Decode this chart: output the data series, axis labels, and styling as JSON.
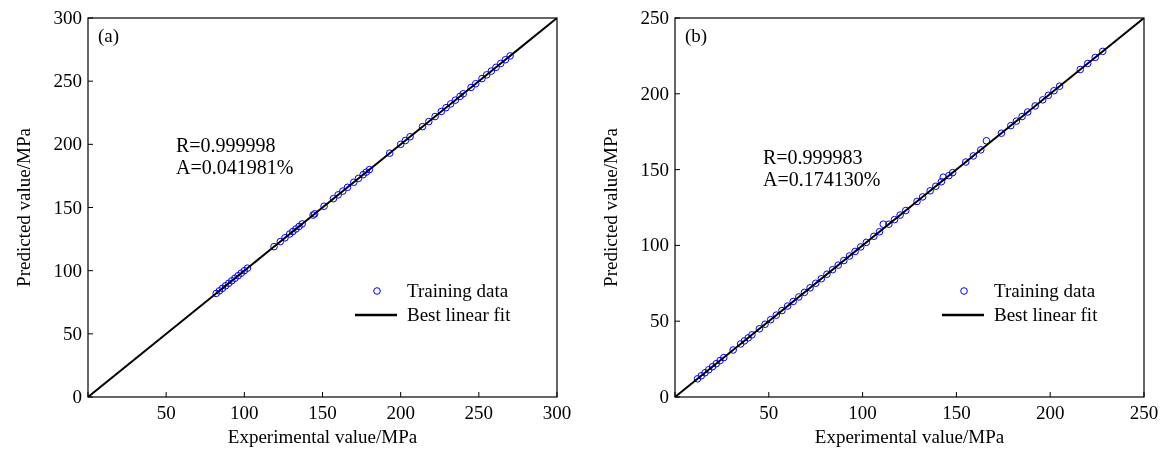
{
  "chart_data": [
    {
      "type": "scatter",
      "xlabel": "Experimental value/MPa",
      "ylabel": "Predicted value/MPa",
      "xlim": [
        0,
        300
      ],
      "ylim": [
        0,
        300
      ],
      "xticks": [
        {
          "value": 0,
          "label": null
        },
        50,
        100,
        150,
        200,
        250,
        300
      ],
      "yticks": [
        0,
        50,
        100,
        150,
        200,
        250,
        300
      ],
      "annotations": [
        "(a)",
        "R=0.999998",
        "A=0.041981%"
      ],
      "legend": "bottom right",
      "grid": false,
      "series": [
        {
          "name": "Training data",
          "type": "scatter",
          "color": "#0000ff",
          "marker": "circle",
          "x": [
            82,
            84,
            86,
            88,
            90,
            92,
            94,
            96,
            98,
            100,
            102,
            119,
            123,
            126,
            129,
            131,
            133,
            135,
            137,
            144,
            145,
            151,
            157,
            160,
            163,
            166,
            170,
            173,
            176,
            178,
            180,
            193,
            200,
            203,
            206,
            214,
            218,
            222,
            226,
            229,
            232,
            235,
            238,
            240,
            245,
            248,
            252,
            255,
            258,
            261,
            264,
            267,
            270
          ],
          "values": [
            82,
            84,
            86,
            88,
            90,
            92,
            94,
            96,
            98,
            100,
            102,
            119,
            123,
            126,
            129,
            131,
            133,
            135,
            137,
            144,
            145,
            151,
            157,
            160,
            163,
            166,
            170,
            173,
            176,
            178,
            180,
            193,
            200,
            203,
            206,
            214,
            218,
            222,
            226,
            229,
            232,
            235,
            238,
            240,
            245,
            248,
            252,
            255,
            258,
            261,
            264,
            267,
            270
          ]
        },
        {
          "name": "Best linear fit",
          "type": "line",
          "color": "#000000",
          "line_style": "solid",
          "x": [
            0,
            300
          ],
          "values": [
            0,
            300
          ]
        }
      ]
    },
    {
      "type": "scatter",
      "xlabel": "Experimental value/MPa",
      "ylabel": "Predicted value/MPa",
      "xlim": [
        0,
        250
      ],
      "ylim": [
        0,
        250
      ],
      "xticks": [
        {
          "value": 0,
          "label": null
        },
        50,
        100,
        150,
        200,
        250
      ],
      "yticks": [
        0,
        50,
        100,
        150,
        200,
        250
      ],
      "annotations": [
        "(b)",
        "R=0.999983",
        "A=0.174130%"
      ],
      "legend": "bottom right",
      "grid": false,
      "series": [
        {
          "name": "Training data",
          "type": "scatter",
          "color": "#0000ff",
          "marker": "circle",
          "x": [
            12,
            14,
            16,
            18,
            20,
            22,
            24,
            26,
            31,
            35,
            37,
            39,
            41,
            45,
            48,
            51,
            54,
            57,
            60,
            63,
            66,
            69,
            72,
            75,
            78,
            81,
            84,
            87,
            90,
            93,
            96,
            99,
            102,
            106,
            109,
            111,
            114,
            117,
            120,
            123,
            129,
            132,
            136,
            139,
            142,
            143,
            146,
            148,
            155,
            159,
            163,
            166,
            174,
            179,
            182,
            185,
            188,
            192,
            196,
            199,
            202,
            205,
            216,
            220,
            224,
            228
          ],
          "values": [
            12,
            14,
            16,
            18,
            20,
            22,
            24,
            26,
            31,
            35,
            37,
            39,
            41,
            45,
            48,
            51,
            54,
            57,
            60,
            63,
            66,
            69,
            72,
            75,
            78,
            81,
            84,
            87,
            90,
            93,
            96,
            99,
            102,
            106,
            109,
            114,
            114,
            117,
            120,
            123,
            129,
            132,
            136,
            139,
            142,
            145,
            146,
            148,
            155,
            159,
            163,
            169,
            174,
            179,
            182,
            185,
            188,
            192,
            196,
            199,
            202,
            205,
            216,
            220,
            224,
            228
          ]
        },
        {
          "name": "Best linear fit",
          "type": "line",
          "color": "#000000",
          "line_style": "solid",
          "x": [
            0,
            250
          ],
          "values": [
            0,
            250
          ]
        }
      ]
    }
  ]
}
